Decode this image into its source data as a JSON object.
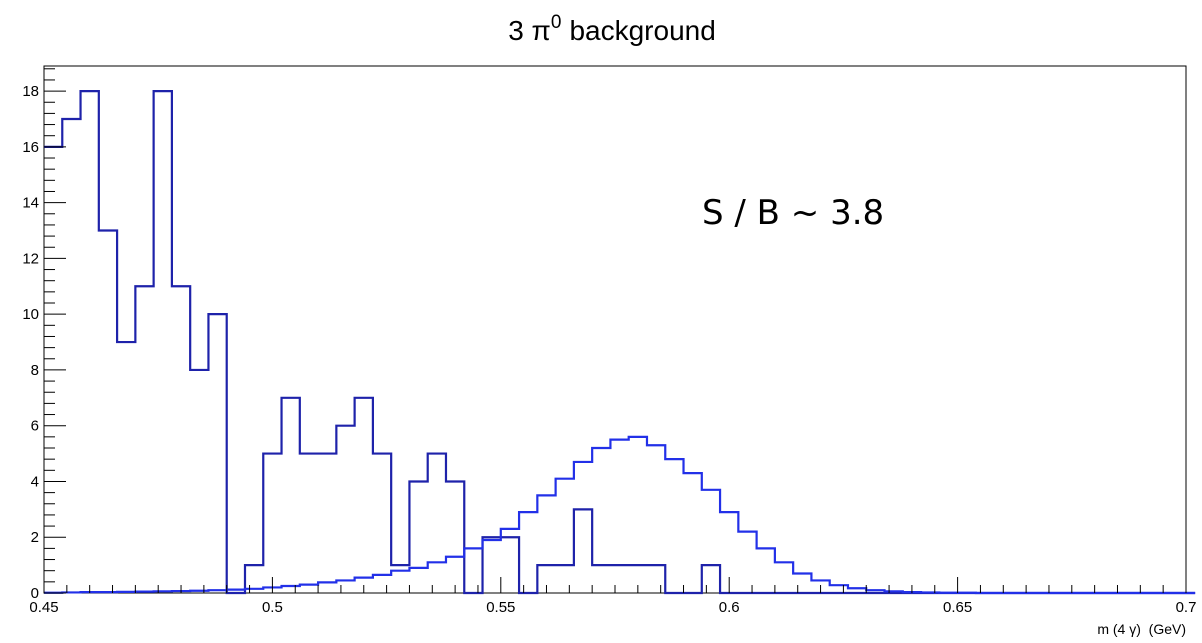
{
  "chart_data": {
    "type": "histogram",
    "title": "3 π⁰ background",
    "title_parts": {
      "prefix": "3 π",
      "sup": "0",
      "suffix": "background"
    },
    "xlabel": "m (4 γ)  (GeV)",
    "ylabel": "",
    "xlim": [
      0.45,
      0.7
    ],
    "ylim": [
      0,
      18.9
    ],
    "grid": false,
    "legend": "none",
    "xticks": [
      0.45,
      0.5,
      0.55,
      0.6,
      0.65,
      0.7
    ],
    "xtick_labels": [
      "0.45",
      "0.5",
      "0.55",
      "0.6",
      "0.65",
      "0.7"
    ],
    "yticks": [
      0,
      2,
      4,
      6,
      8,
      10,
      12,
      14,
      16,
      18
    ],
    "ytick_labels": [
      "0",
      "2",
      "4",
      "6",
      "8",
      "10",
      "12",
      "14",
      "16",
      "18"
    ],
    "annotation": "S / B ~ 3.8",
    "bin_width": 0.004,
    "series": [
      {
        "color": "#1e22aa",
        "values": [
          16,
          17,
          18,
          13,
          9,
          11,
          18,
          11,
          8,
          10,
          0,
          1,
          5,
          7,
          5,
          5,
          6,
          7,
          5,
          1,
          4,
          5,
          4,
          0,
          2,
          2,
          0,
          1,
          1,
          3,
          1,
          1,
          1,
          1,
          0,
          0,
          1,
          0,
          0,
          0,
          0,
          0,
          0,
          0,
          0,
          0,
          0,
          0,
          0,
          0,
          0,
          0,
          0,
          0,
          0,
          0,
          0,
          0,
          0,
          0,
          0,
          0,
          0
        ]
      },
      {
        "color": "#2230e8",
        "values": [
          0.01,
          0.02,
          0.03,
          0.03,
          0.04,
          0.05,
          0.06,
          0.07,
          0.08,
          0.1,
          0.12,
          0.15,
          0.2,
          0.25,
          0.3,
          0.38,
          0.45,
          0.55,
          0.65,
          0.8,
          0.9,
          1.1,
          1.3,
          1.6,
          1.9,
          2.3,
          2.9,
          3.5,
          4.1,
          4.7,
          5.2,
          5.5,
          5.6,
          5.3,
          4.8,
          4.3,
          3.7,
          2.9,
          2.2,
          1.6,
          1.1,
          0.7,
          0.45,
          0.28,
          0.17,
          0.1,
          0.06,
          0.03,
          0.02,
          0.01,
          0.01,
          0,
          0,
          0,
          0,
          0,
          0,
          0,
          0,
          0,
          0,
          0,
          0
        ]
      }
    ]
  }
}
